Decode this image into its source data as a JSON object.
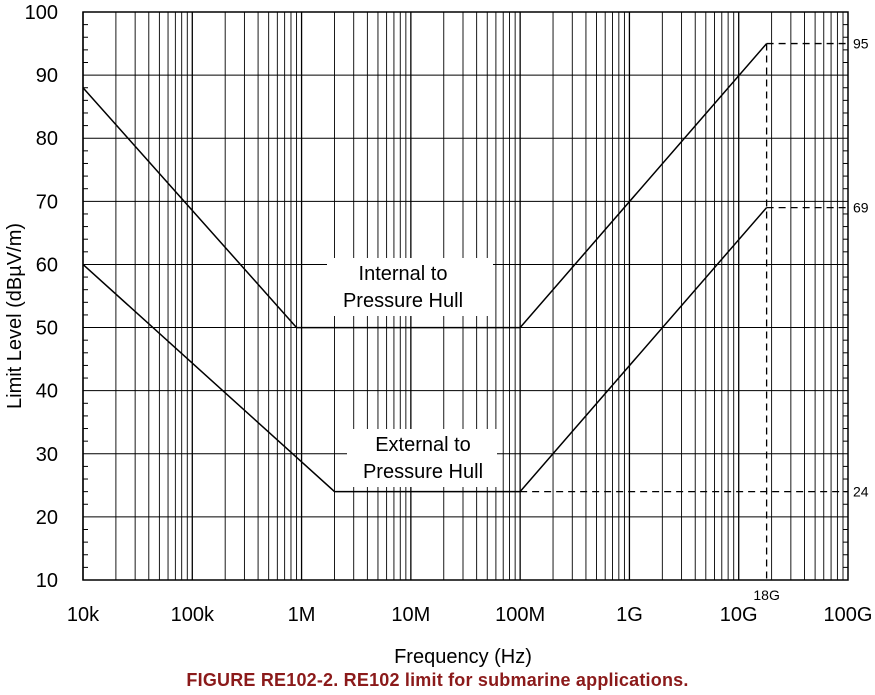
{
  "caption": "FIGURE RE102-2.  RE102 limit for submarine applications.",
  "chart_data": {
    "type": "line",
    "x_scale": "log",
    "xlabel": "Frequency (Hz)",
    "ylabel": "Limit Level (dBµV/m)",
    "xlim": [
      10000,
      100000000000
    ],
    "ylim": [
      10,
      100
    ],
    "x_ticks": [
      {
        "value": 10000,
        "label": "10k"
      },
      {
        "value": 100000,
        "label": "100k"
      },
      {
        "value": 1000000,
        "label": "1M"
      },
      {
        "value": 10000000,
        "label": "10M"
      },
      {
        "value": 100000000,
        "label": "100M"
      },
      {
        "value": 1000000000,
        "label": "1G"
      },
      {
        "value": 10000000000,
        "label": "10G"
      },
      {
        "value": 100000000000,
        "label": "100G"
      }
    ],
    "y_ticks": [
      10,
      20,
      30,
      40,
      50,
      60,
      70,
      80,
      90,
      100
    ],
    "grid": true,
    "series": [
      {
        "name": "Internal to Pressure Hull",
        "x": [
          10000,
          900000,
          100000000,
          18000000000
        ],
        "y": [
          88,
          50,
          50,
          95
        ]
      },
      {
        "name": "External to Pressure Hull",
        "x": [
          10000,
          2000000,
          100000000,
          18000000000
        ],
        "y": [
          60,
          24,
          24,
          69
        ]
      }
    ],
    "annotations": {
      "right_values": [
        "95",
        "69",
        "24"
      ],
      "freq_marker": "18G"
    }
  }
}
